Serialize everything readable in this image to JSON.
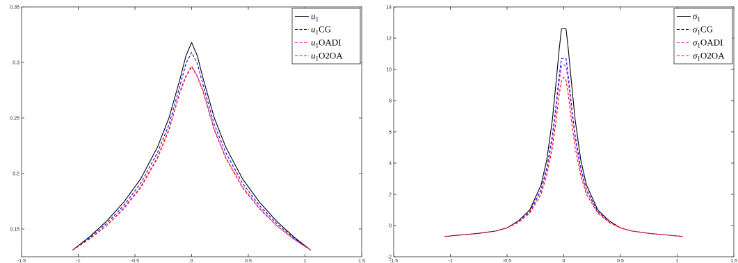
{
  "chart_data": [
    {
      "type": "line",
      "title": "",
      "xlabel": "",
      "ylabel": "",
      "xlim": [
        -1.5,
        1.5
      ],
      "ylim": [
        0.125,
        0.35
      ],
      "xticks": [
        -1.5,
        -1,
        -0.5,
        0,
        0.5,
        1,
        1.5
      ],
      "xtick_labels": [
        "-1.5",
        "-1",
        "-0.5",
        "0",
        "0.5",
        "1",
        "1.5"
      ],
      "yticks": [
        0.15,
        0.2,
        0.25,
        0.3,
        0.35
      ],
      "ytick_labels": [
        "0.15",
        "0.2",
        "0.25",
        "0.3",
        "0.35"
      ],
      "grid": false,
      "legend_position": "top-right",
      "x": [
        -1.05,
        -0.9,
        -0.75,
        -0.6,
        -0.45,
        -0.3,
        -0.2,
        -0.1,
        -0.05,
        0,
        0.05,
        0.1,
        0.2,
        0.3,
        0.45,
        0.6,
        0.75,
        0.9,
        1.05
      ],
      "series": [
        {
          "name": "u",
          "sub": "1",
          "suffix": "",
          "color": "#000000",
          "dash": "",
          "values": [
            0.131,
            0.143,
            0.157,
            0.174,
            0.195,
            0.224,
            0.25,
            0.286,
            0.306,
            0.318,
            0.306,
            0.286,
            0.25,
            0.224,
            0.195,
            0.174,
            0.157,
            0.143,
            0.131
          ]
        },
        {
          "name": "u",
          "sub": "1",
          "suffix": "CG",
          "color": "#0000ff",
          "dash": "4,2.5",
          "values": [
            0.131,
            0.142,
            0.155,
            0.171,
            0.191,
            0.219,
            0.244,
            0.28,
            0.299,
            0.309,
            0.299,
            0.28,
            0.244,
            0.219,
            0.191,
            0.171,
            0.155,
            0.142,
            0.131
          ]
        },
        {
          "name": "u",
          "sub": "1",
          "suffix": "OADI",
          "color": "#cc33cc",
          "dash": "4,2.5",
          "values": [
            0.131,
            0.141,
            0.153,
            0.169,
            0.188,
            0.215,
            0.24,
            0.275,
            0.288,
            0.297,
            0.288,
            0.275,
            0.24,
            0.215,
            0.188,
            0.169,
            0.153,
            0.141,
            0.131
          ]
        },
        {
          "name": "u",
          "sub": "1",
          "suffix": "O2OA",
          "color": "#ff0000",
          "dash": "4,2.5",
          "values": [
            0.131,
            0.141,
            0.153,
            0.168,
            0.187,
            0.214,
            0.239,
            0.274,
            0.287,
            0.296,
            0.287,
            0.274,
            0.239,
            0.214,
            0.187,
            0.168,
            0.153,
            0.141,
            0.131
          ]
        }
      ]
    },
    {
      "type": "line",
      "title": "",
      "xlabel": "",
      "ylabel": "",
      "xlim": [
        -1.5,
        1.5
      ],
      "ylim": [
        -2,
        14
      ],
      "xticks": [
        -1.5,
        -1,
        -0.5,
        0,
        0.5,
        1,
        1.5
      ],
      "xtick_labels": [
        "-1.5",
        "-1",
        "-0.5",
        "0",
        "0.5",
        "1",
        "1.5"
      ],
      "yticks": [
        -2,
        0,
        2,
        4,
        6,
        8,
        10,
        12,
        14
      ],
      "ytick_labels": [
        "-2",
        "0",
        "2",
        "4",
        "6",
        "8",
        "10",
        "12",
        "14"
      ],
      "grid": false,
      "legend_position": "top-right",
      "x": [
        -1.05,
        -0.9,
        -0.75,
        -0.6,
        -0.5,
        -0.4,
        -0.3,
        -0.2,
        -0.15,
        -0.1,
        -0.07,
        -0.04,
        -0.02,
        0,
        0.02,
        0.04,
        0.07,
        0.1,
        0.15,
        0.2,
        0.3,
        0.4,
        0.5,
        0.6,
        0.75,
        0.9,
        1.05
      ],
      "series": [
        {
          "name": "σ",
          "sub": "1",
          "suffix": "",
          "color": "#000000",
          "dash": "",
          "values": [
            -0.7,
            -0.6,
            -0.5,
            -0.35,
            -0.15,
            0.3,
            1.0,
            2.6,
            4.2,
            6.8,
            9.0,
            11.3,
            12.6,
            12.6,
            12.6,
            11.3,
            9.0,
            6.8,
            4.2,
            2.6,
            1.0,
            0.3,
            -0.15,
            -0.35,
            -0.5,
            -0.6,
            -0.7
          ]
        },
        {
          "name": "σ",
          "sub": "1",
          "suffix": "CG",
          "color": "#0000ff",
          "dash": "4,2.5",
          "values": [
            -0.7,
            -0.6,
            -0.5,
            -0.35,
            -0.15,
            0.25,
            0.9,
            2.3,
            3.7,
            5.8,
            7.6,
            9.6,
            10.7,
            10.7,
            10.7,
            9.6,
            7.6,
            5.8,
            3.7,
            2.3,
            0.9,
            0.25,
            -0.15,
            -0.35,
            -0.5,
            -0.6,
            -0.7
          ]
        },
        {
          "name": "σ",
          "sub": "1",
          "suffix": "OADI",
          "color": "#cc33cc",
          "dash": "4,2.5",
          "values": [
            -0.7,
            -0.6,
            -0.5,
            -0.35,
            -0.15,
            0.25,
            0.85,
            2.2,
            3.5,
            5.5,
            7.3,
            9.2,
            10.2,
            10.3,
            10.2,
            9.2,
            7.3,
            5.5,
            3.5,
            2.2,
            0.85,
            0.25,
            -0.15,
            -0.35,
            -0.5,
            -0.6,
            -0.7
          ]
        },
        {
          "name": "σ",
          "sub": "1",
          "suffix": "O2OA",
          "color": "#ff0000",
          "dash": "4,2.5",
          "values": [
            -0.7,
            -0.6,
            -0.5,
            -0.35,
            -0.15,
            0.2,
            0.8,
            2.0,
            3.2,
            5.0,
            6.6,
            8.4,
            9.3,
            9.5,
            9.3,
            8.4,
            6.6,
            5.0,
            3.2,
            2.0,
            0.8,
            0.2,
            -0.15,
            -0.35,
            -0.5,
            -0.6,
            -0.7
          ]
        }
      ]
    }
  ]
}
